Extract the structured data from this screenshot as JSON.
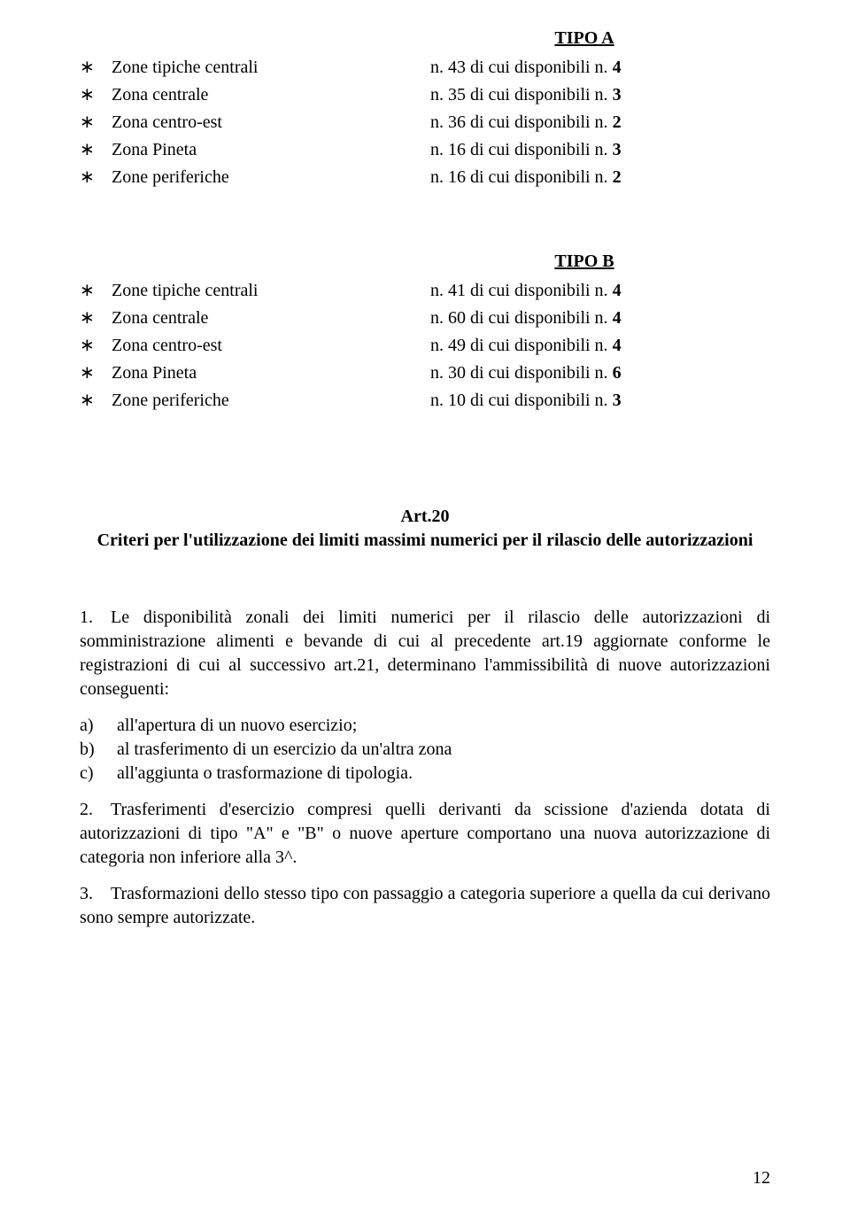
{
  "tipoA": {
    "header": "TIPO A",
    "rows": [
      {
        "marker": "∗",
        "name": "Zone tipiche centrali",
        "prefix": "n. 43 di cui disponibili n. ",
        "bold": "4"
      },
      {
        "marker": "∗",
        "name": "Zona centrale",
        "prefix": "n. 35 di cui disponibili n. ",
        "bold": "3"
      },
      {
        "marker": "∗",
        "name": "Zona centro-est",
        "prefix": "n. 36 di cui disponibili n. ",
        "bold": "2"
      },
      {
        "marker": "∗",
        "name": "Zona Pineta",
        "prefix": "n. 16 di cui disponibili n. ",
        "bold": "3"
      },
      {
        "marker": "∗",
        "name": "Zone periferiche",
        "prefix": "n. 16 di cui disponibili n. ",
        "bold": "2"
      }
    ]
  },
  "tipoB": {
    "header": "TIPO B",
    "rows": [
      {
        "marker": "∗",
        "name": "Zone tipiche centrali",
        "prefix": "n. 41 di cui disponibili n. ",
        "bold": "4"
      },
      {
        "marker": "∗",
        "name": "Zona centrale",
        "prefix": "n. 60 di cui disponibili n. ",
        "bold": "4"
      },
      {
        "marker": "∗",
        "name": "Zona centro-est",
        "prefix": "n. 49 di cui disponibili n. ",
        "bold": "4"
      },
      {
        "marker": "∗",
        "name": "Zona Pineta",
        "prefix": "n. 30 di cui disponibili n. ",
        "bold": "6"
      },
      {
        "marker": "∗",
        "name": "Zone periferiche",
        "prefix": "n. 10 di cui disponibili n. ",
        "bold": "3"
      }
    ]
  },
  "article": {
    "title": "Art.20",
    "subtitle": "Criteri per l'utilizzazione dei limiti massimi numerici per il rilascio delle autorizzazioni",
    "p1": "1. Le disponibilità zonali dei limiti numerici per il rilascio delle autorizzazioni di somministrazione alimenti e bevande di cui al precedente art.19 aggiornate conforme le registrazioni di cui al successivo art.21, determinano l'ammissibilità di nuove autorizzazioni conseguenti:",
    "sublist": [
      {
        "m": "a)",
        "t": "all'apertura di un nuovo esercizio;"
      },
      {
        "m": "b)",
        "t": "al trasferimento di un esercizio da un'altra zona"
      },
      {
        "m": "c)",
        "t": "all'aggiunta o trasformazione di tipologia."
      }
    ],
    "p2": "2. Trasferimenti d'esercizio compresi quelli derivanti da scissione d'azienda dotata di autorizzazioni di tipo \"A\" e \"B\" o nuove aperture comportano una nuova autorizzazione di categoria non inferiore alla 3^.",
    "p3": "3. Trasformazioni dello stesso tipo con passaggio a categoria superiore a quella da cui derivano sono sempre autorizzate."
  },
  "pageNumber": "12"
}
